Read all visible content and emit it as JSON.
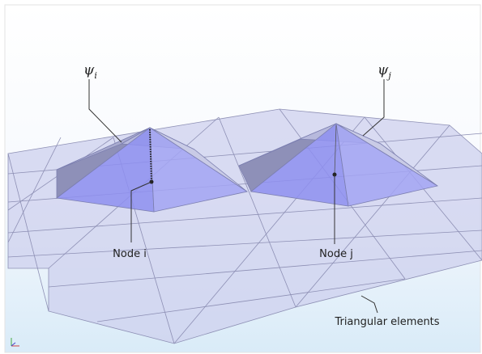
{
  "basis_functions": [
    {
      "symbol": "ψ",
      "subscript": "i"
    },
    {
      "symbol": "ψ",
      "subscript": "j"
    }
  ],
  "nodes": [
    {
      "label": "Node i"
    },
    {
      "label": "Node j"
    }
  ],
  "mesh": {
    "label": "Triangular elements"
  }
}
